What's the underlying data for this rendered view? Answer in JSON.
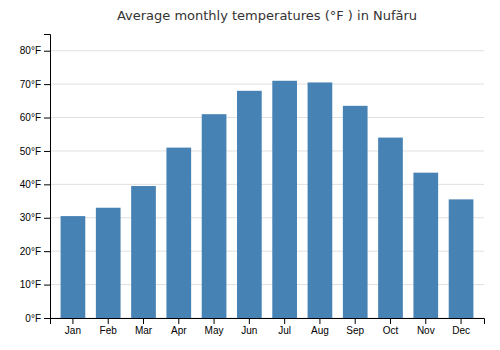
{
  "chart_data": {
    "type": "bar",
    "title": "Average monthly temperatures (°F ) in Nufăru",
    "categories": [
      "Jan",
      "Feb",
      "Mar",
      "Apr",
      "May",
      "Jun",
      "Jul",
      "Aug",
      "Sep",
      "Oct",
      "Nov",
      "Dec"
    ],
    "values": [
      30.5,
      33.0,
      39.5,
      51.0,
      61.0,
      68.0,
      71.0,
      70.5,
      63.5,
      54.0,
      43.5,
      35.5
    ],
    "ylim": [
      0,
      85
    ],
    "yticks": [
      {
        "value": 0,
        "label": "0°F"
      },
      {
        "value": 10,
        "label": "10°F"
      },
      {
        "value": 20,
        "label": "20°F"
      },
      {
        "value": 30,
        "label": "30°F"
      },
      {
        "value": 40,
        "label": "40°F"
      },
      {
        "value": 50,
        "label": "50°F"
      },
      {
        "value": 60,
        "label": "60°F"
      },
      {
        "value": 70,
        "label": "70°F"
      },
      {
        "value": 80,
        "label": "80°F"
      }
    ],
    "grid": true
  }
}
